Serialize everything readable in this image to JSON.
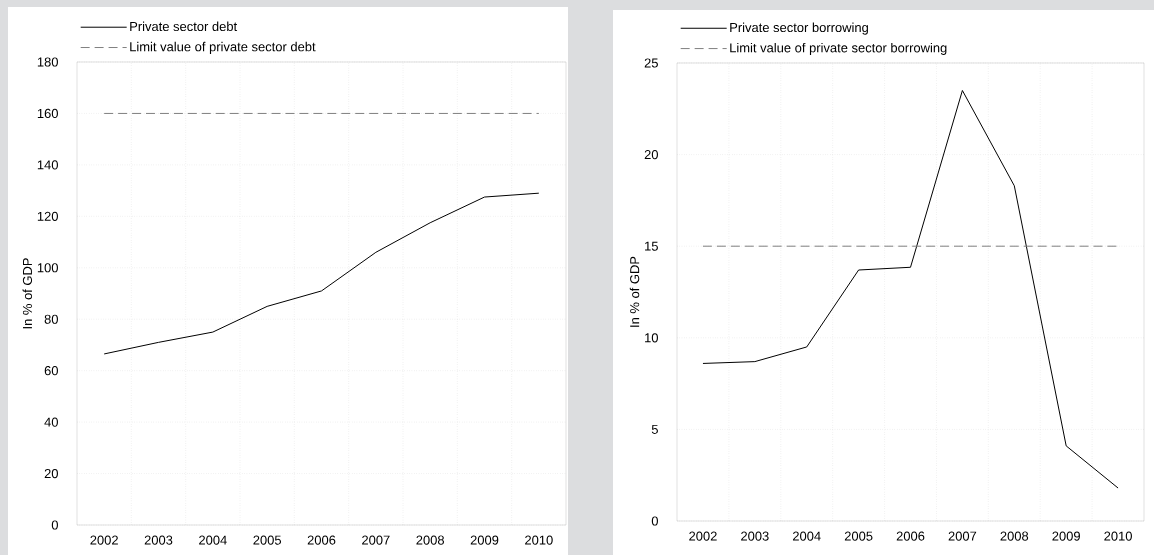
{
  "chart_data": [
    {
      "type": "line",
      "ylabel": "In % of GDP",
      "categories": [
        "2002",
        "2003",
        "2004",
        "2005",
        "2006",
        "2007",
        "2008",
        "2009",
        "2010"
      ],
      "series": [
        {
          "name": "Private sector debt",
          "color": "#000000",
          "line_style": "solid",
          "values": [
            66.5,
            71,
            75,
            85,
            91,
            106,
            117.5,
            127.5,
            129
          ]
        },
        {
          "name": "Limit value of private sector debt",
          "color": "#808080",
          "line_style": "dashed",
          "values": [
            160,
            160,
            160,
            160,
            160,
            160,
            160,
            160,
            160
          ]
        }
      ],
      "ylim": [
        0,
        180
      ],
      "yticks": [
        0,
        20,
        40,
        60,
        80,
        100,
        120,
        140,
        160,
        180
      ],
      "grid": true,
      "legend": "top left",
      "marker": "none"
    },
    {
      "type": "line",
      "ylabel": "In % of GDP",
      "categories": [
        "2002",
        "2003",
        "2004",
        "2005",
        "2006",
        "2007",
        "2008",
        "2009",
        "2010"
      ],
      "series": [
        {
          "name": "Private sector borrowing",
          "color": "#000000",
          "line_style": "solid",
          "values": [
            8.6,
            8.7,
            9.5,
            13.7,
            13.85,
            23.5,
            18.3,
            4.1,
            1.8
          ]
        },
        {
          "name": "Limit value of private sector borrowing",
          "color": "#808080",
          "line_style": "dashed",
          "values": [
            15,
            15,
            15,
            15,
            15,
            15,
            15,
            15,
            15
          ]
        }
      ],
      "ylim": [
        0,
        25
      ],
      "yticks": [
        0,
        5,
        10,
        15,
        20,
        25
      ],
      "grid": true,
      "legend": "top left",
      "marker": "none"
    }
  ]
}
